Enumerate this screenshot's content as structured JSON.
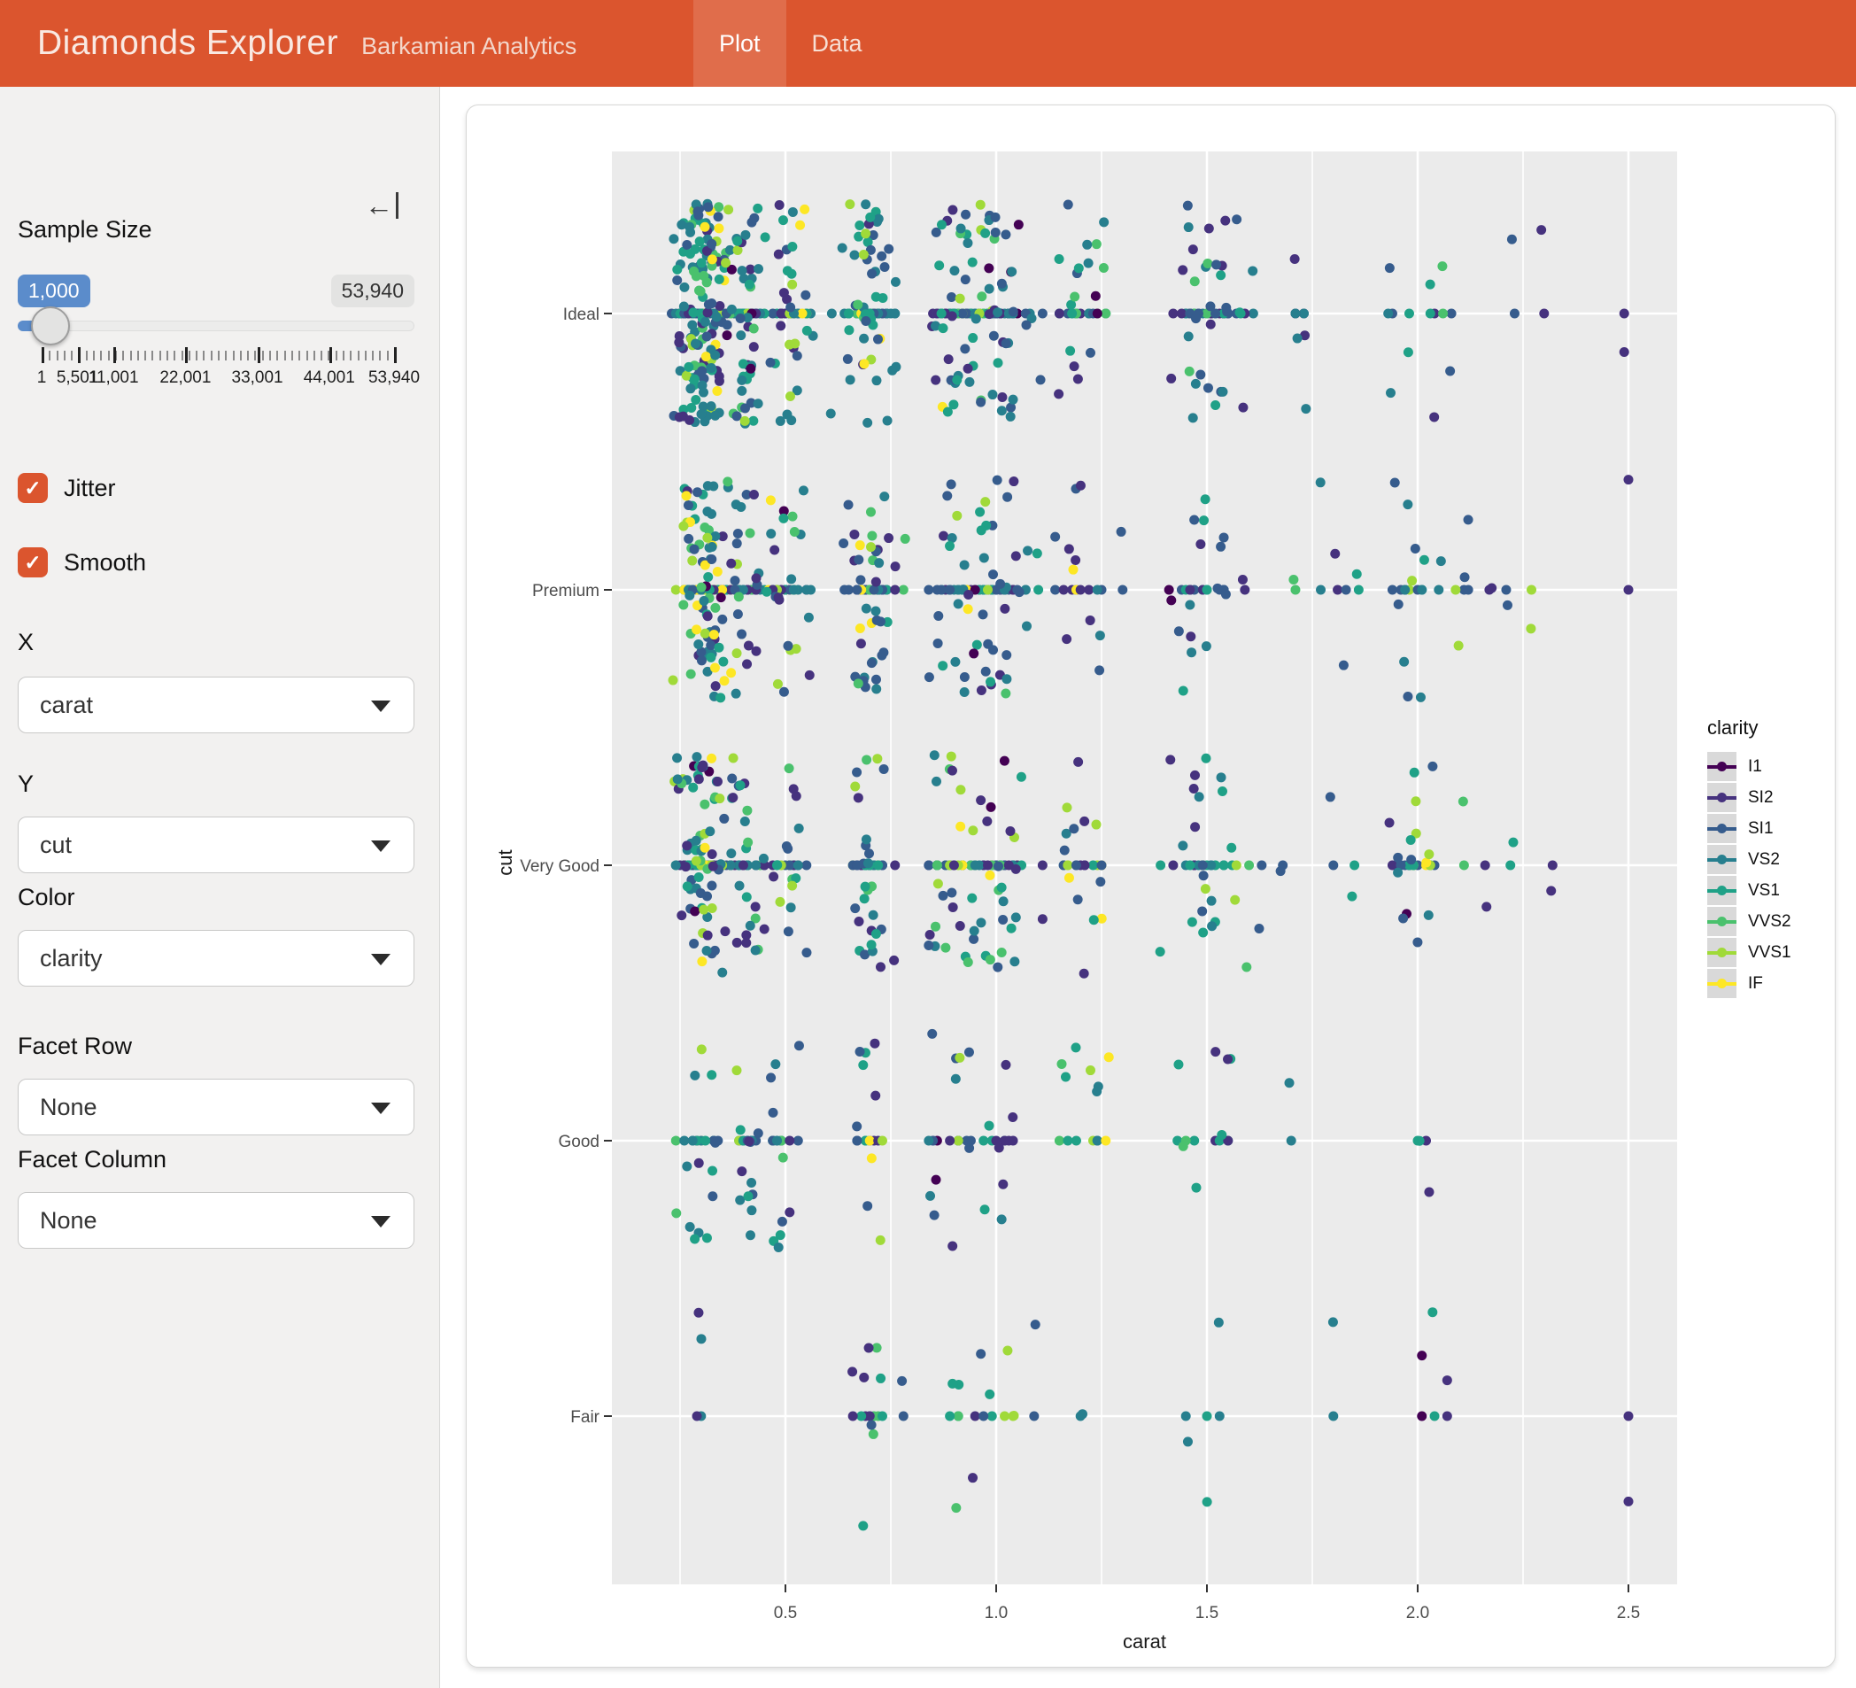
{
  "app": {
    "title": "Diamonds Explorer",
    "subtitle": "Barkamian Analytics",
    "nav": [
      {
        "label": "Plot",
        "active": true
      },
      {
        "label": "Data",
        "active": false
      }
    ]
  },
  "theme": {
    "primary": "#DB552E",
    "active_tab_overlay": "rgba(255,255,255,0.14)",
    "sidebar_bg": "#F2F1F0",
    "slider_from_badge_bg": "#5B8CCB",
    "slider_to_badge_bg": "#E3E3E2",
    "panel_bg": "#EBEBEB",
    "gridline": "#FFFFFF",
    "legend_key_bg": "#D9D9D9",
    "axis_text": "#4D4D4D"
  },
  "sidebar": {
    "collapse_icon": "arrow-bar-left",
    "sample_size": {
      "label": "Sample Size",
      "from_value": "1,000",
      "to_value": "53,940",
      "min": 1,
      "max": 53940,
      "value": 1000,
      "grid": [
        {
          "text": "1",
          "pct": 0
        },
        {
          "text": "5,501",
          "pct": 10.2
        },
        {
          "text": "11,001",
          "pct": 20.4
        },
        {
          "text": "22,001",
          "pct": 40.8
        },
        {
          "text": "33,001",
          "pct": 61.2
        },
        {
          "text": "44,001",
          "pct": 81.6
        },
        {
          "text": "53,940",
          "pct": 100
        }
      ]
    },
    "checkboxes": [
      {
        "label": "Jitter",
        "checked": true
      },
      {
        "label": "Smooth",
        "checked": true
      }
    ],
    "selects": [
      {
        "label": "X",
        "value": "carat"
      },
      {
        "label": "Y",
        "value": "cut"
      },
      {
        "label": "Color",
        "value": "clarity"
      },
      {
        "label": "Facet Row",
        "value": "None"
      },
      {
        "label": "Facet Column",
        "value": "None"
      }
    ]
  },
  "chart_data": {
    "type": "scatter",
    "title": "",
    "xlabel": "carat",
    "ylabel": "cut",
    "x_ticks": [
      0.5,
      1.0,
      1.5,
      2.0,
      2.5
    ],
    "x_minor_ticks": [
      0.25,
      0.75,
      1.25,
      1.75,
      2.25
    ],
    "x_range": [
      0.09,
      2.62
    ],
    "categories_top_to_bottom": [
      "Ideal",
      "Premium",
      "Very Good",
      "Good",
      "Fair"
    ],
    "sample_size": 1000,
    "layers": [
      "point",
      "jitter"
    ],
    "jitter_amount_y": 0.4,
    "point_radius_px": 5.5,
    "legend": {
      "title": "clarity",
      "position": "right",
      "items": [
        {
          "label": "I1",
          "color": "#440154"
        },
        {
          "label": "SI2",
          "color": "#46327E"
        },
        {
          "label": "SI1",
          "color": "#365C8D"
        },
        {
          "label": "VS2",
          "color": "#277F8E"
        },
        {
          "label": "VS1",
          "color": "#1FA187"
        },
        {
          "label": "VVS2",
          "color": "#4AC16D"
        },
        {
          "label": "VVS1",
          "color": "#A0DA39"
        },
        {
          "label": "IF",
          "color": "#FDE725"
        }
      ]
    },
    "cut_weights": {
      "Ideal": 0.4,
      "Premium": 0.256,
      "Very Good": 0.224,
      "Good": 0.091,
      "Fair": 0.03
    },
    "clarity_weights": {
      "I1": 0.013,
      "SI2": 0.17,
      "SI1": 0.242,
      "VS2": 0.227,
      "VS1": 0.151,
      "VVS2": 0.094,
      "VVS1": 0.068,
      "IF": 0.033
    },
    "carat_clusters": [
      {
        "c": 0.3,
        "w": 0.25,
        "s": 0.032
      },
      {
        "c": 0.32,
        "w": 0.05,
        "s": 0.015
      },
      {
        "c": 0.4,
        "w": 0.1,
        "s": 0.022
      },
      {
        "c": 0.5,
        "w": 0.1,
        "s": 0.03
      },
      {
        "c": 0.7,
        "w": 0.125,
        "s": 0.032
      },
      {
        "c": 0.9,
        "w": 0.07,
        "s": 0.038
      },
      {
        "c": 1.0,
        "w": 0.1,
        "s": 0.042
      },
      {
        "c": 1.2,
        "w": 0.065,
        "s": 0.05
      },
      {
        "c": 1.5,
        "w": 0.065,
        "s": 0.042
      },
      {
        "c": 1.75,
        "w": 0.02,
        "s": 0.06
      },
      {
        "c": 2.0,
        "w": 0.035,
        "s": 0.045
      },
      {
        "c": 2.2,
        "w": 0.015,
        "s": 0.1
      }
    ],
    "notable_points": [
      {
        "carat": 2.5,
        "cut": "Fair",
        "clarity": "SI2",
        "dy": 0.31
      },
      {
        "carat": 2.5,
        "cut": "Premium",
        "clarity": "SI2",
        "dy": -0.4
      },
      {
        "carat": 2.49,
        "cut": "Ideal",
        "clarity": "SI2",
        "dy": 0.14
      },
      {
        "carat": 2.01,
        "cut": "Fair",
        "clarity": "I1",
        "dy": -0.22
      },
      {
        "carat": 2.07,
        "cut": "Fair",
        "clarity": "SI2",
        "dy": -0.13
      }
    ],
    "seed": 1337
  }
}
